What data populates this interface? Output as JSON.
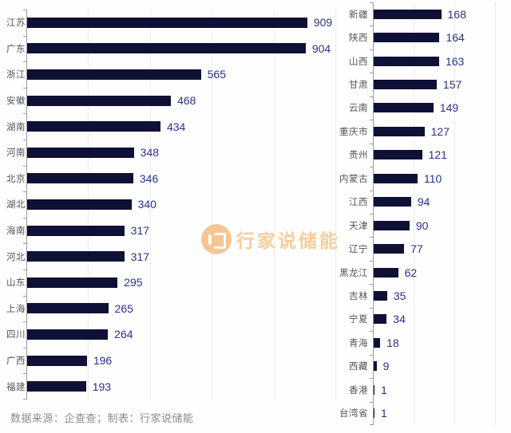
{
  "watermark": {
    "text": "行家说储能",
    "logo": "hangjiashuo-logo-icon",
    "color": "#f7c893"
  },
  "footer": {
    "source_note": "数据来源：企查查；制表：行家说储能"
  },
  "colors": {
    "bar": "#0e1036",
    "value_label": "#2c3090",
    "category_label": "#53545c",
    "axis": "#9b9ba1",
    "gridline": "#ededea",
    "background": "#fdfefd",
    "watermark": "#f5c189",
    "footer_text": "#8a8a90"
  },
  "chart_data": [
    {
      "type": "bar",
      "orientation": "horizontal",
      "title": "",
      "legend": false,
      "grid": true,
      "value_labels": true,
      "categories": [
        "江苏",
        "广东",
        "浙江",
        "安徽",
        "湖南",
        "河南",
        "北京",
        "湖北",
        "海南",
        "河北",
        "山东",
        "上海",
        "四川",
        "广西",
        "福建"
      ],
      "values": [
        909,
        904,
        565,
        468,
        434,
        348,
        346,
        340,
        317,
        317,
        295,
        265,
        264,
        196,
        193
      ],
      "xlim": [
        0,
        1000
      ],
      "gridline_values": [
        200,
        400,
        600,
        800,
        1000
      ]
    },
    {
      "type": "bar",
      "orientation": "horizontal",
      "title": "",
      "legend": false,
      "grid": true,
      "value_labels": true,
      "categories": [
        "新疆",
        "陕西",
        "山西",
        "甘肃",
        "云南",
        "重庆市",
        "贵州",
        "内蒙古",
        "江西",
        "天津",
        "辽宁",
        "黑龙江",
        "吉林",
        "宁夏",
        "青海",
        "西藏",
        "香港",
        "台湾省"
      ],
      "values": [
        168,
        164,
        163,
        157,
        149,
        127,
        121,
        110,
        94,
        90,
        77,
        62,
        35,
        34,
        18,
        9,
        1,
        1
      ],
      "xlim": [
        0,
        330
      ],
      "gridline_values": [
        100,
        200,
        300
      ]
    }
  ]
}
